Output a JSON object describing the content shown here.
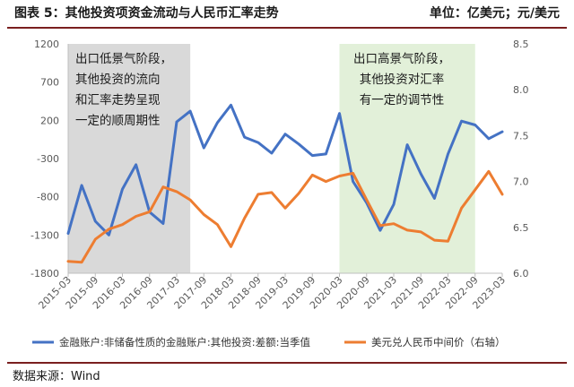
{
  "header": {
    "title": "图表 5：其他投资项资金流动与人民币汇率走势",
    "unit": "单位：亿美元；元/美元"
  },
  "source": "数据来源：Wind",
  "colors": {
    "series1": "#4472C4",
    "series2": "#ED7D31",
    "shade_left": "#D9D9D9",
    "shade_right": "#E2F0D9",
    "rule": "#7a1f1f"
  },
  "chart_data": {
    "type": "line",
    "x": [
      "2015-03",
      "2015-06",
      "2015-09",
      "2015-12",
      "2016-03",
      "2016-06",
      "2016-09",
      "2016-12",
      "2017-03",
      "2017-06",
      "2017-09",
      "2017-12",
      "2018-03",
      "2018-06",
      "2018-09",
      "2018-12",
      "2019-03",
      "2019-06",
      "2019-09",
      "2019-12",
      "2020-03",
      "2020-06",
      "2020-09",
      "2020-12",
      "2021-03",
      "2021-06",
      "2021-09",
      "2021-12",
      "2022-03",
      "2022-06",
      "2022-09",
      "2022-12",
      "2023-03"
    ],
    "x_tick_labels": [
      "2015-03",
      "2015-09",
      "2016-03",
      "2016-09",
      "2017-03",
      "2017-09",
      "2018-03",
      "2018-09",
      "2019-03",
      "2019-09",
      "2020-03",
      "2020-09",
      "2021-03",
      "2021-09",
      "2022-03",
      "2022-09",
      "2023-03"
    ],
    "series": [
      {
        "name": "金融账户:非储备性质的金融账户:其他投资:差额:当季值",
        "axis": "left",
        "values": [
          -1280,
          -650,
          -1120,
          -1300,
          -700,
          -380,
          -1000,
          -1150,
          180,
          320,
          -160,
          170,
          400,
          -20,
          -90,
          -230,
          20,
          -110,
          -260,
          -240,
          290,
          -600,
          -880,
          -1240,
          -900,
          -120,
          -500,
          -820,
          -240,
          190,
          140,
          -40,
          50
        ]
      },
      {
        "name": "美元兑人民币中间价（右轴）",
        "axis": "right",
        "values": [
          6.13,
          6.12,
          6.37,
          6.48,
          6.53,
          6.62,
          6.67,
          6.94,
          6.89,
          6.8,
          6.64,
          6.53,
          6.29,
          6.6,
          6.86,
          6.88,
          6.71,
          6.87,
          7.07,
          7.0,
          7.06,
          7.09,
          6.8,
          6.52,
          6.54,
          6.47,
          6.45,
          6.36,
          6.35,
          6.71,
          6.91,
          7.11,
          6.86
        ]
      }
    ],
    "left_axis": {
      "ylim": [
        -1800,
        1200
      ],
      "ticks": [
        -1800,
        -1300,
        -800,
        -300,
        200,
        700,
        1200
      ]
    },
    "right_axis": {
      "ylim": [
        6.0,
        8.5
      ],
      "ticks": [
        6.0,
        6.5,
        7.0,
        7.5,
        8.0,
        8.5
      ]
    },
    "shaded_regions": [
      {
        "from": "2015-03",
        "to": "2017-06",
        "note": [
          "出口低景气阶段，",
          "其他投资的流向",
          "和汇率走势呈现",
          "一定的顺周期性"
        ]
      },
      {
        "from": "2020-03",
        "to": "2022-09",
        "note": [
          "出口高景气阶段，",
          "其他投资对汇率",
          "有一定的调节性"
        ]
      }
    ],
    "legend_position": "bottom",
    "grid": false
  }
}
